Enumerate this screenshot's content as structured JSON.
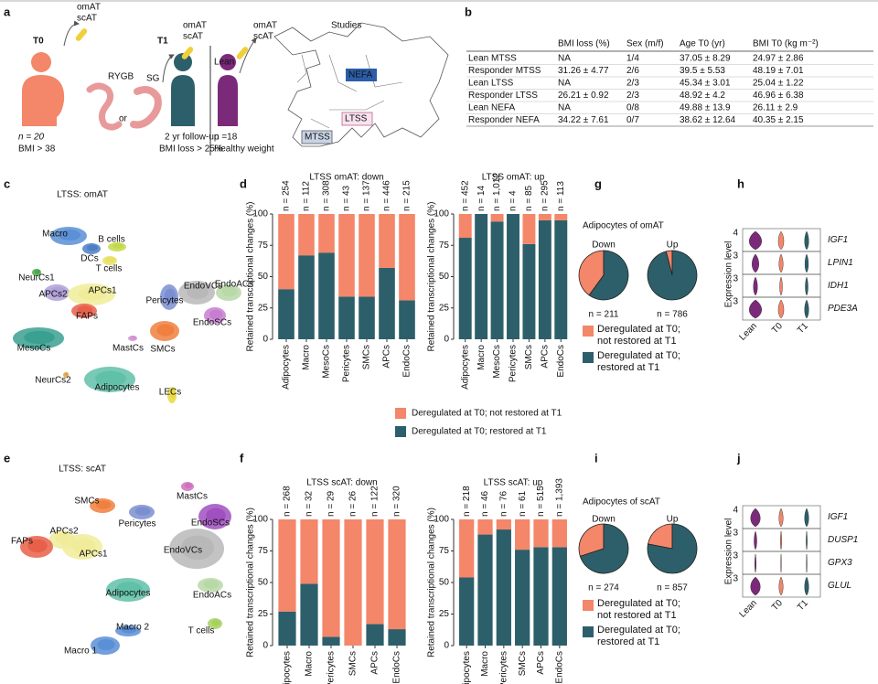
{
  "panel_labels": [
    "a",
    "b",
    "c",
    "d",
    "e",
    "f",
    "g",
    "h",
    "i",
    "j"
  ],
  "schematic": {
    "t0": "T0",
    "t1": "T1",
    "lean": "Lean",
    "omat": "omAT",
    "scat": "scAT",
    "rygb": "RYGB",
    "or": "or",
    "sg": "SG",
    "t0_n": "n = 20",
    "t0_bmi": "BMI > 38",
    "followup": "2 yr follow-up",
    "bmi_loss": "BMI loss > 25%",
    "lean_n": "n =18",
    "healthy": "Healthy weight",
    "studies": "Studies",
    "nefa": "NEFA",
    "ltss": "LTSS",
    "mtss": "MTSS"
  },
  "table": {
    "header": [
      "BMI loss (%)",
      "Sex (m/f)",
      "Age T0 (yr)",
      "BMI T0 (kg m⁻²)"
    ],
    "rows": [
      [
        "Lean MTSS",
        "NA",
        "1/4",
        "37.05 ± 8.29",
        "24.97 ± 2.86"
      ],
      [
        "Responder MTSS",
        "31.26 ± 4.77",
        "2/6",
        "39.5 ± 5.53",
        "48.19 ± 7.01"
      ],
      [
        "Lean LTSS",
        "NA",
        "2/3",
        "45.34 ± 3.01",
        "25.04 ± 1.22"
      ],
      [
        "Responder LTSS",
        "26.21 ± 0.92",
        "2/3",
        "48.92 ± 4.2",
        "46.96 ± 6.38"
      ],
      [
        "Lean NEFA",
        "NA",
        "0/8",
        "49.88 ± 13.9",
        "26.11 ± 2.9"
      ],
      [
        "Responder NEFA",
        "34.22 ± 7.61",
        "0/7",
        "38.62 ± 12.64",
        "40.35 ± 2.15"
      ]
    ]
  },
  "umap_c": {
    "title": "LTSS: omAT",
    "clusters": [
      "Macro",
      "DCs",
      "B cells",
      "T cells",
      "NeurCs1",
      "APCs2",
      "APCs1",
      "FAPs",
      "Pericytes",
      "EndoVCs",
      "EndoACs",
      "EndoSCs",
      "SMCs",
      "MastCs",
      "MesoCs",
      "NeurCs2",
      "Adipocytes",
      "LECs"
    ]
  },
  "umap_e": {
    "title": "LTSS: scAT",
    "clusters": [
      "MastCs",
      "SMCs",
      "Pericytes",
      "EndoSCs",
      "APCs2",
      "FAPs",
      "APCs1",
      "EndoVCs",
      "Adipocytes",
      "EndoACs",
      "T cells",
      "Macro 2",
      "Macro 1"
    ]
  },
  "chart_data": [
    {
      "type": "bar",
      "title": "LTSS omAT: down",
      "ylabel": "Retained transcriptional changes (%)",
      "categories": [
        "Adipocytes",
        "Macro",
        "MesoCs",
        "Pericytes",
        "SMCs",
        "APCs",
        "EndoCs"
      ],
      "n_labels": [
        "n = 254",
        "n = 112",
        "n = 308",
        "n = 43",
        "n = 137",
        "n = 446",
        "n = 215"
      ],
      "series": [
        {
          "name": "Deregulated at T0; restored at T1",
          "color": "#2d5f6a",
          "values": [
            40,
            67,
            69,
            34,
            34,
            57,
            31
          ]
        },
        {
          "name": "Deregulated at T0; not restored at T1",
          "color": "#f4866a",
          "values": [
            60,
            33,
            31,
            66,
            66,
            43,
            69
          ]
        }
      ],
      "ylim": [
        0,
        100
      ],
      "yticks": [
        0,
        25,
        50,
        75,
        100
      ]
    },
    {
      "type": "bar",
      "title": "LTSS omAT: up",
      "ylabel": "Retained transcriptional changes (%)",
      "categories": [
        "Adipocytes",
        "Macro",
        "MesoCs",
        "Pericytes",
        "SMCs",
        "APCs",
        "EndoCs"
      ],
      "n_labels": [
        "n = 452",
        "n = 14",
        "n = 1,012",
        "n = 4",
        "n = 85",
        "n = 295",
        "n = 113"
      ],
      "series": [
        {
          "color": "#2d5f6a",
          "values": [
            81,
            100,
            94,
            100,
            76,
            95,
            95
          ]
        },
        {
          "color": "#f4866a",
          "values": [
            19,
            0,
            6,
            0,
            24,
            5,
            5
          ]
        }
      ],
      "ylim": [
        0,
        100
      ],
      "yticks": [
        0,
        25,
        50,
        75,
        100
      ]
    },
    {
      "type": "bar",
      "title": "LTSS scAT: down",
      "ylabel": "Retained transcriptional changes (%)",
      "categories": [
        "Adipocytes",
        "Macro",
        "Pericytes",
        "SMCs",
        "APCs",
        "EndoCs"
      ],
      "n_labels": [
        "n = 268",
        "n = 32",
        "n = 29",
        "n = 26",
        "n = 122",
        "n = 320"
      ],
      "series": [
        {
          "color": "#2d5f6a",
          "values": [
            27,
            49,
            7,
            0,
            17,
            13
          ]
        },
        {
          "color": "#f4866a",
          "values": [
            73,
            51,
            93,
            100,
            83,
            87
          ]
        }
      ],
      "ylim": [
        0,
        100
      ],
      "yticks": [
        0,
        25,
        50,
        75,
        100
      ]
    },
    {
      "type": "bar",
      "title": "LTSS scAT: up",
      "ylabel": "Retained transcriptional changes (%)",
      "categories": [
        "Adipocytes",
        "Macro",
        "Pericytes",
        "SMCs",
        "APCs",
        "EndoCs"
      ],
      "n_labels": [
        "n = 218",
        "n = 46",
        "n = 76",
        "n = 61",
        "n = 515",
        "n = 1,393"
      ],
      "series": [
        {
          "color": "#2d5f6a",
          "values": [
            54,
            88,
            92,
            76,
            78,
            78
          ]
        },
        {
          "color": "#f4866a",
          "values": [
            46,
            12,
            8,
            24,
            22,
            22
          ]
        }
      ],
      "ylim": [
        0,
        100
      ],
      "yticks": [
        0,
        25,
        50,
        75,
        100
      ]
    },
    {
      "type": "pie",
      "title": "Adipocytes of omAT",
      "labels": [
        "Deregulated at T0; not restored at T1",
        "Deregulated at T0; restored at T1"
      ],
      "colors": [
        "#f4866a",
        "#2d5f6a"
      ],
      "pies": [
        {
          "label": "Down",
          "n_label": "n = 211",
          "values": [
            40,
            60
          ]
        },
        {
          "label": "Up",
          "n_label": "n = 786",
          "values": [
            4,
            96
          ]
        }
      ]
    },
    {
      "type": "pie",
      "title": "Adipocytes of scAT",
      "labels": [
        "Deregulated at T0; not restored at T1",
        "Deregulated at T0; restored at T1"
      ],
      "colors": [
        "#f4866a",
        "#2d5f6a"
      ],
      "pies": [
        {
          "label": "Down",
          "n_label": "n = 274",
          "values": [
            30,
            70
          ]
        },
        {
          "label": "Up",
          "n_label": "n = 857",
          "values": [
            22,
            78
          ]
        }
      ]
    }
  ],
  "violin_h": {
    "ylabel": "Expression level",
    "groups": [
      "Lean",
      "T0",
      "T1"
    ],
    "genes": [
      "IGF1",
      "LPIN1",
      "IDH1",
      "PDE3A"
    ],
    "row_ticks": [
      4,
      3,
      3,
      3
    ]
  },
  "violin_j": {
    "ylabel": "Expression level",
    "groups": [
      "Lean",
      "T0",
      "T1"
    ],
    "genes": [
      "IGF1",
      "DUSP1",
      "GPX3",
      "GLUL"
    ],
    "row_ticks": [
      4,
      3,
      3,
      3
    ]
  }
}
